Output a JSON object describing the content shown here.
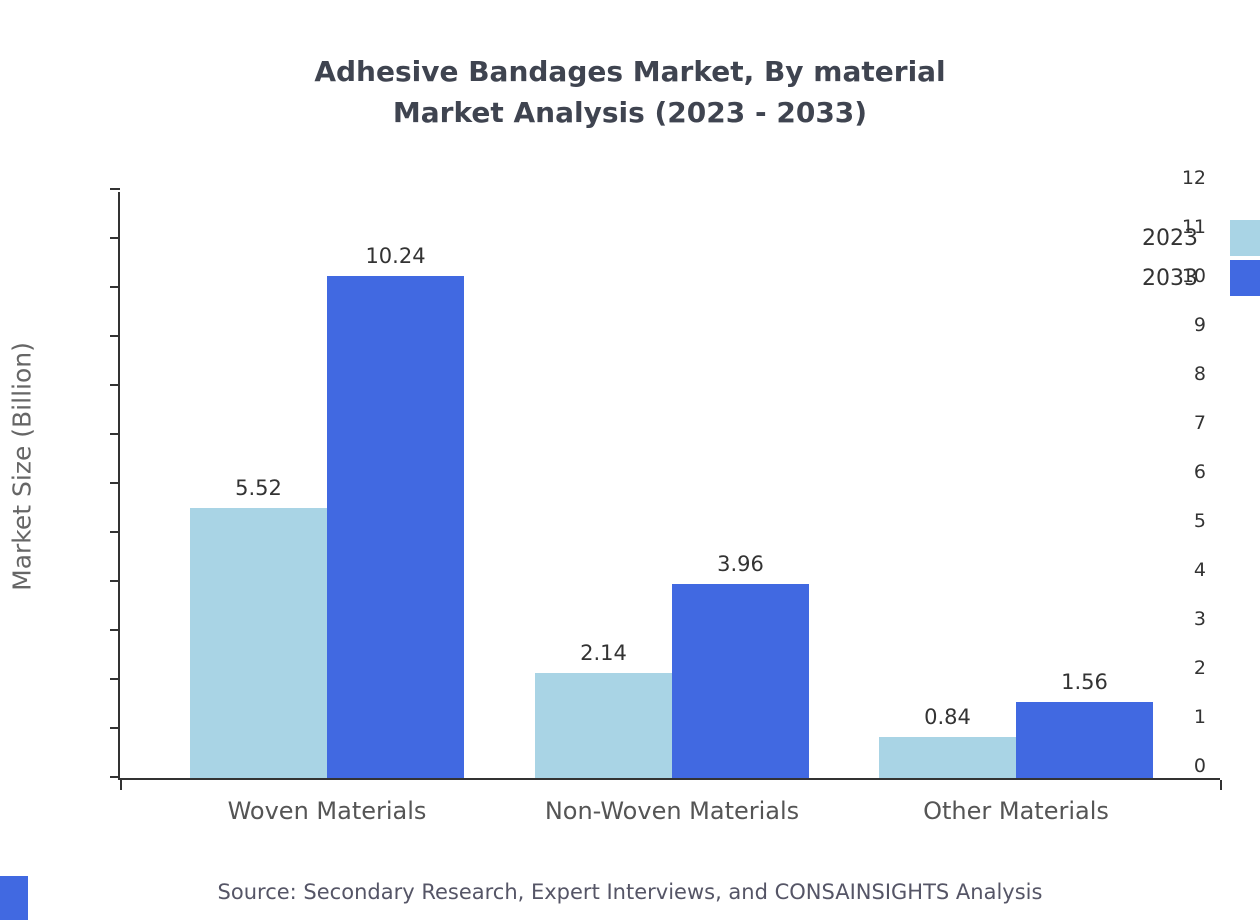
{
  "chart_data": {
    "type": "bar",
    "title": "Adhesive Bandages Market, By material",
    "subtitle": "Market Analysis (2023 - 2033)",
    "categories": [
      "Woven Materials",
      "Non-Woven Materials",
      "Other Materials"
    ],
    "series": [
      {
        "name": "2023",
        "color": "#a9d4e5",
        "values": [
          5.52,
          2.14,
          0.84
        ]
      },
      {
        "name": "2033",
        "color": "#4169e1",
        "values": [
          10.24,
          3.96,
          1.56
        ]
      }
    ],
    "ylabel": "Market Size (Billion)",
    "xlabel": "",
    "ylim": [
      0,
      12
    ],
    "ytick_step": 1,
    "grid": false,
    "legend_position": "top-right",
    "source": "Source: Secondary Research, Expert Interviews, and CONSAINSIGHTS Analysis"
  },
  "colors": {
    "accent_blue": "#4169e1",
    "light_blue": "#a9d4e5",
    "axis": "#333333",
    "title_text": "#3f4450",
    "muted_text": "#555566"
  }
}
